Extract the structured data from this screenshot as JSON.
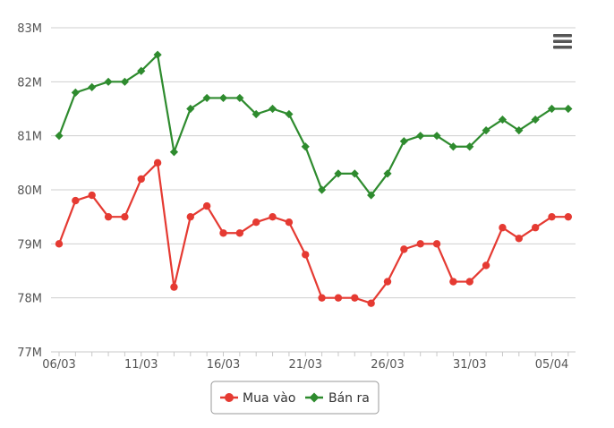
{
  "chart_data": {
    "type": "line",
    "title": "",
    "xlabel": "",
    "ylabel": "",
    "x_tick_labels": [
      "06/03",
      "11/03",
      "16/03",
      "21/03",
      "26/03",
      "31/03",
      "05/04"
    ],
    "y_tick_labels": [
      "77M",
      "78M",
      "79M",
      "80M",
      "81M",
      "82M",
      "83M"
    ],
    "ylim": [
      77,
      83
    ],
    "grid": true,
    "legend_position": "bottom-center",
    "series": [
      {
        "name": "Mua vào",
        "color": "#e53a32",
        "marker": "circle",
        "values": [
          79.0,
          79.8,
          79.9,
          79.5,
          79.5,
          80.2,
          80.5,
          78.2,
          79.5,
          79.7,
          79.2,
          79.2,
          79.4,
          79.5,
          79.4,
          78.8,
          78.0,
          78.0,
          78.0,
          77.9,
          78.3,
          78.9,
          79.0,
          79.0,
          78.3,
          78.3,
          78.6,
          79.3,
          79.1,
          79.3,
          79.5,
          79.5
        ]
      },
      {
        "name": "Bán ra",
        "color": "#2e8b2e",
        "marker": "diamond",
        "values": [
          81.0,
          81.8,
          81.9,
          82.0,
          82.0,
          82.2,
          82.5,
          80.7,
          81.5,
          81.7,
          81.7,
          81.7,
          81.4,
          81.5,
          81.4,
          80.8,
          80.0,
          80.3,
          80.3,
          79.9,
          80.3,
          80.9,
          81.0,
          81.0,
          80.8,
          80.8,
          81.1,
          81.3,
          81.1,
          81.3,
          81.5,
          81.5
        ]
      }
    ]
  },
  "toolbar": {
    "menu_icon": "hamburger-menu-icon"
  }
}
